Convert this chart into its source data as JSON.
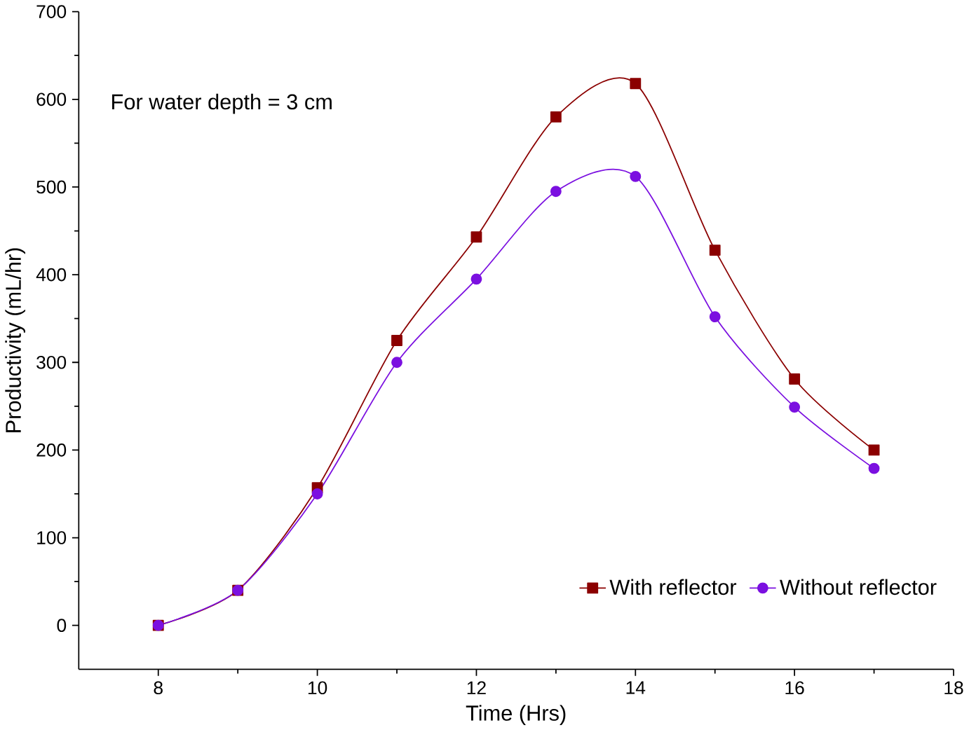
{
  "chart_data": {
    "type": "line",
    "xlabel": "Time (Hrs)",
    "ylabel": "Productivity (mL/hr)",
    "annotations": [
      "For water depth = 3 cm"
    ],
    "x": [
      8,
      9,
      10,
      11,
      12,
      13,
      14,
      15,
      16,
      17
    ],
    "series": [
      {
        "name": "With reflector",
        "color": "#8b0000",
        "marker": "square",
        "values": [
          0,
          40,
          157,
          325,
          443,
          580,
          618,
          428,
          281,
          200
        ]
      },
      {
        "name": "Without reflector",
        "color": "#7b10e0",
        "marker": "circle",
        "values": [
          0,
          40,
          150,
          300,
          395,
          495,
          512,
          352,
          249,
          179
        ]
      }
    ],
    "xlim": [
      7,
      18
    ],
    "xticks": [
      8,
      10,
      12,
      14,
      16,
      18
    ],
    "ylim": [
      -50,
      700
    ],
    "yticks": [
      0,
      100,
      200,
      300,
      400,
      500,
      600,
      700
    ],
    "grid": false,
    "legend": "bottom right"
  }
}
